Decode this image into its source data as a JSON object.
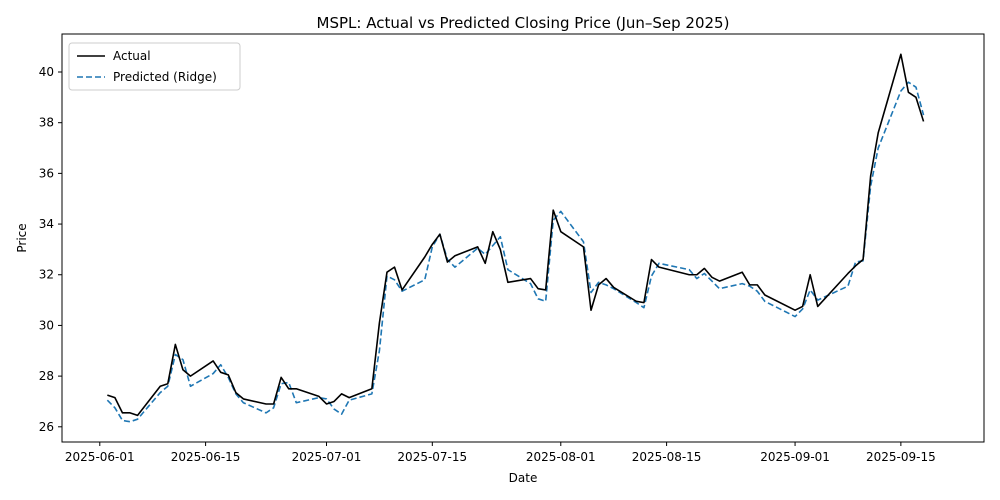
{
  "chart_data": {
    "type": "line",
    "title": "MSPL: Actual vs Predicted Closing Price (Jun–Sep 2025)",
    "xlabel": "Date",
    "ylabel": "Price",
    "legend_position": "top-left",
    "grid": false,
    "xlim": [
      "2025-05-27",
      "2025-09-26"
    ],
    "ylim": [
      25.4,
      41.5
    ],
    "x_ticks": [
      "2025-06-01",
      "2025-06-15",
      "2025-07-01",
      "2025-07-15",
      "2025-08-01",
      "2025-08-15",
      "2025-09-01",
      "2025-09-15"
    ],
    "y_ticks": [
      26,
      28,
      30,
      32,
      34,
      36,
      38,
      40
    ],
    "series": [
      {
        "name": "Actual",
        "color": "#000000",
        "style": "solid",
        "points": [
          [
            "2025-06-02",
            27.25
          ],
          [
            "2025-06-03",
            27.15
          ],
          [
            "2025-06-04",
            26.55
          ],
          [
            "2025-06-05",
            26.55
          ],
          [
            "2025-06-06",
            26.45
          ],
          [
            "2025-06-09",
            27.6
          ],
          [
            "2025-06-10",
            27.7
          ],
          [
            "2025-06-11",
            29.25
          ],
          [
            "2025-06-12",
            28.25
          ],
          [
            "2025-06-13",
            28.0
          ],
          [
            "2025-06-16",
            28.6
          ],
          [
            "2025-06-17",
            28.15
          ],
          [
            "2025-06-18",
            28.05
          ],
          [
            "2025-06-19",
            27.35
          ],
          [
            "2025-06-20",
            27.1
          ],
          [
            "2025-06-23",
            26.9
          ],
          [
            "2025-06-24",
            26.9
          ],
          [
            "2025-06-25",
            27.95
          ],
          [
            "2025-06-26",
            27.5
          ],
          [
            "2025-06-27",
            27.5
          ],
          [
            "2025-06-30",
            27.2
          ],
          [
            "2025-07-01",
            26.9
          ],
          [
            "2025-07-02",
            27.0
          ],
          [
            "2025-07-03",
            27.3
          ],
          [
            "2025-07-04",
            27.15
          ],
          [
            "2025-07-07",
            27.5
          ],
          [
            "2025-07-08",
            30.1
          ],
          [
            "2025-07-09",
            32.1
          ],
          [
            "2025-07-10",
            32.3
          ],
          [
            "2025-07-11",
            31.4
          ],
          [
            "2025-07-14",
            32.7
          ],
          [
            "2025-07-15",
            33.2
          ],
          [
            "2025-07-16",
            33.6
          ],
          [
            "2025-07-17",
            32.5
          ],
          [
            "2025-07-18",
            32.75
          ],
          [
            "2025-07-21",
            33.1
          ],
          [
            "2025-07-22",
            32.45
          ],
          [
            "2025-07-23",
            33.7
          ],
          [
            "2025-07-24",
            33.0
          ],
          [
            "2025-07-25",
            31.7
          ],
          [
            "2025-07-28",
            31.85
          ],
          [
            "2025-07-29",
            31.45
          ],
          [
            "2025-07-30",
            31.4
          ],
          [
            "2025-07-31",
            34.55
          ],
          [
            "2025-08-01",
            33.7
          ],
          [
            "2025-08-04",
            33.1
          ],
          [
            "2025-08-05",
            30.6
          ],
          [
            "2025-08-06",
            31.6
          ],
          [
            "2025-08-07",
            31.85
          ],
          [
            "2025-08-08",
            31.5
          ],
          [
            "2025-08-11",
            30.95
          ],
          [
            "2025-08-12",
            30.9
          ],
          [
            "2025-08-13",
            32.6
          ],
          [
            "2025-08-14",
            32.3
          ],
          [
            "2025-08-18",
            32.0
          ],
          [
            "2025-08-19",
            32.0
          ],
          [
            "2025-08-20",
            32.25
          ],
          [
            "2025-08-21",
            31.9
          ],
          [
            "2025-08-22",
            31.75
          ],
          [
            "2025-08-25",
            32.1
          ],
          [
            "2025-08-26",
            31.6
          ],
          [
            "2025-08-27",
            31.6
          ],
          [
            "2025-08-28",
            31.2
          ],
          [
            "2025-09-01",
            30.6
          ],
          [
            "2025-09-02",
            30.75
          ],
          [
            "2025-09-03",
            32.0
          ],
          [
            "2025-09-04",
            30.75
          ],
          [
            "2025-09-08",
            32.05
          ],
          [
            "2025-09-09",
            32.35
          ],
          [
            "2025-09-10",
            32.6
          ],
          [
            "2025-09-11",
            35.9
          ],
          [
            "2025-09-12",
            37.6
          ],
          [
            "2025-09-15",
            40.7
          ],
          [
            "2025-09-16",
            39.2
          ],
          [
            "2025-09-17",
            39.0
          ],
          [
            "2025-09-18",
            38.05
          ]
        ]
      },
      {
        "name": "Predicted (Ridge)",
        "color": "#1f77b4",
        "style": "dashed",
        "points": [
          [
            "2025-06-02",
            27.05
          ],
          [
            "2025-06-03",
            26.75
          ],
          [
            "2025-06-04",
            26.25
          ],
          [
            "2025-06-05",
            26.2
          ],
          [
            "2025-06-06",
            26.3
          ],
          [
            "2025-06-09",
            27.35
          ],
          [
            "2025-06-10",
            27.6
          ],
          [
            "2025-06-11",
            28.85
          ],
          [
            "2025-06-12",
            28.65
          ],
          [
            "2025-06-13",
            27.6
          ],
          [
            "2025-06-16",
            28.1
          ],
          [
            "2025-06-17",
            28.45
          ],
          [
            "2025-06-18",
            27.95
          ],
          [
            "2025-06-19",
            27.3
          ],
          [
            "2025-06-20",
            26.95
          ],
          [
            "2025-06-23",
            26.55
          ],
          [
            "2025-06-24",
            26.75
          ],
          [
            "2025-06-25",
            27.7
          ],
          [
            "2025-06-26",
            27.75
          ],
          [
            "2025-06-27",
            26.95
          ],
          [
            "2025-06-30",
            27.15
          ],
          [
            "2025-07-01",
            27.1
          ],
          [
            "2025-07-02",
            26.7
          ],
          [
            "2025-07-03",
            26.5
          ],
          [
            "2025-07-04",
            27.05
          ],
          [
            "2025-07-07",
            27.3
          ],
          [
            "2025-07-08",
            29.0
          ],
          [
            "2025-07-09",
            31.95
          ],
          [
            "2025-07-10",
            31.8
          ],
          [
            "2025-07-11",
            31.35
          ],
          [
            "2025-07-14",
            31.8
          ],
          [
            "2025-07-15",
            33.1
          ],
          [
            "2025-07-16",
            33.6
          ],
          [
            "2025-07-17",
            32.6
          ],
          [
            "2025-07-18",
            32.3
          ],
          [
            "2025-07-21",
            33.05
          ],
          [
            "2025-07-22",
            32.8
          ],
          [
            "2025-07-23",
            33.15
          ],
          [
            "2025-07-24",
            33.5
          ],
          [
            "2025-07-25",
            32.2
          ],
          [
            "2025-07-28",
            31.65
          ],
          [
            "2025-07-29",
            31.05
          ],
          [
            "2025-07-30",
            30.95
          ],
          [
            "2025-07-31",
            34.15
          ],
          [
            "2025-08-01",
            34.5
          ],
          [
            "2025-08-04",
            33.3
          ],
          [
            "2025-08-05",
            31.3
          ],
          [
            "2025-08-06",
            31.7
          ],
          [
            "2025-08-07",
            31.6
          ],
          [
            "2025-08-08",
            31.45
          ],
          [
            "2025-08-11",
            30.9
          ],
          [
            "2025-08-12",
            30.7
          ],
          [
            "2025-08-13",
            31.95
          ],
          [
            "2025-08-14",
            32.45
          ],
          [
            "2025-08-18",
            32.2
          ],
          [
            "2025-08-19",
            31.85
          ],
          [
            "2025-08-20",
            32.05
          ],
          [
            "2025-08-21",
            31.75
          ],
          [
            "2025-08-22",
            31.45
          ],
          [
            "2025-08-25",
            31.65
          ],
          [
            "2025-08-26",
            31.55
          ],
          [
            "2025-08-27",
            31.35
          ],
          [
            "2025-08-28",
            30.95
          ],
          [
            "2025-09-01",
            30.35
          ],
          [
            "2025-09-02",
            30.65
          ],
          [
            "2025-09-03",
            31.4
          ],
          [
            "2025-09-04",
            31.0
          ],
          [
            "2025-09-08",
            31.55
          ],
          [
            "2025-09-09",
            32.5
          ],
          [
            "2025-09-10",
            32.55
          ],
          [
            "2025-09-11",
            35.5
          ],
          [
            "2025-09-12",
            37.0
          ],
          [
            "2025-09-15",
            39.25
          ],
          [
            "2025-09-16",
            39.6
          ],
          [
            "2025-09-17",
            39.4
          ],
          [
            "2025-09-18",
            38.3
          ]
        ]
      }
    ]
  }
}
